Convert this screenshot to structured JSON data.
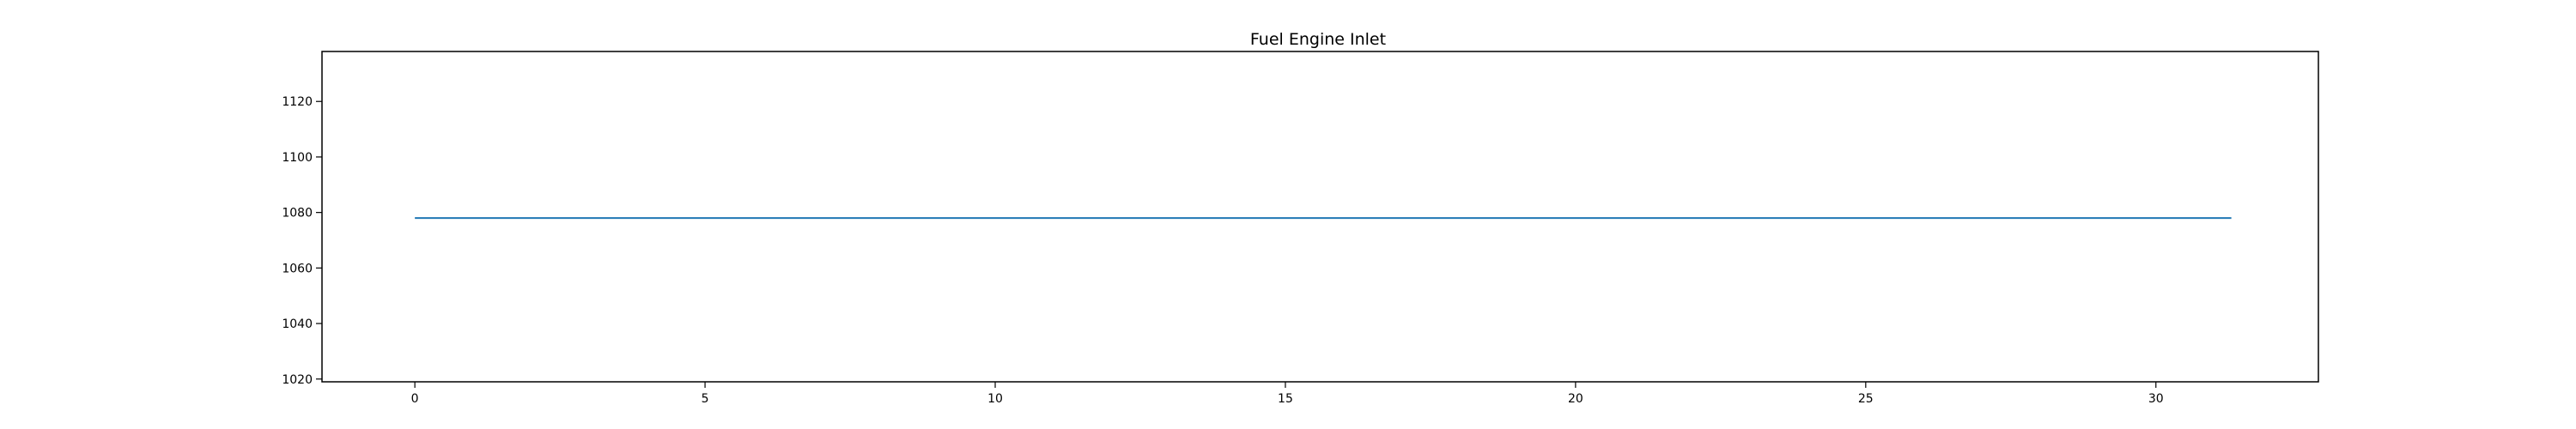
{
  "chart_data": {
    "type": "line",
    "title": "Fuel Engine Inlet",
    "xlabel": "",
    "ylabel": "",
    "xlim": [
      -1.6,
      32.8
    ],
    "ylim": [
      1019,
      1138
    ],
    "x_ticks": [
      0,
      5,
      10,
      15,
      20,
      25,
      30
    ],
    "y_ticks": [
      1020,
      1040,
      1060,
      1080,
      1100,
      1120
    ],
    "grid": false,
    "legend": "none",
    "series": [
      {
        "color": "#1f77b4",
        "x": [
          0,
          31.3
        ],
        "y": [
          1078,
          1078
        ]
      }
    ]
  }
}
